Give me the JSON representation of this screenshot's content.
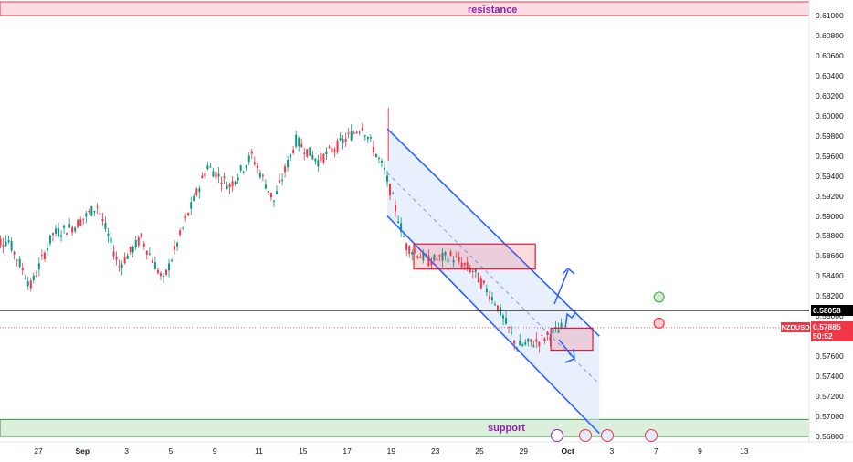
{
  "chart_data": {
    "type": "candlestick",
    "symbol": "NZDUSD",
    "last_price": "0.57885",
    "countdown": "50:52",
    "key_level": "0.58058",
    "zones": {
      "resistance": {
        "label": "resistance",
        "from": 0.61,
        "to": 0.6115
      },
      "support": {
        "label": "support",
        "from": 0.568,
        "to": 0.5697
      }
    },
    "ylim": [
      0.5674,
      0.6117
    ],
    "y_ticks": [
      "0.61000",
      "0.60800",
      "0.60600",
      "0.60400",
      "0.60200",
      "0.60000",
      "0.59800",
      "0.59600",
      "0.59400",
      "0.59200",
      "0.59000",
      "0.58800",
      "0.58600",
      "0.58400",
      "0.58200",
      "0.58000",
      "0.57800",
      "0.57600",
      "0.57400",
      "0.57200",
      "0.57000",
      "0.56800"
    ],
    "x_ticks": [
      "27",
      "Sep",
      "3",
      "5",
      "9",
      "11",
      "15",
      "17",
      "19",
      "23",
      "25",
      "29",
      "Oct",
      "3",
      "7",
      "9",
      "13"
    ],
    "x_tick_bold": [
      "Sep",
      "Oct"
    ],
    "session_count": 26,
    "session_closes": [
      0.5875,
      0.583,
      0.5882,
      0.589,
      0.591,
      0.585,
      0.5878,
      0.5835,
      0.5895,
      0.595,
      0.593,
      0.596,
      0.5915,
      0.5975,
      0.5955,
      0.5972,
      0.599,
      0.5945,
      0.587,
      0.5855,
      0.586,
      0.5845,
      0.5815,
      0.577,
      0.5775,
      0.5788
    ],
    "channel": {
      "upper": [
        [
          18,
          0.5987
        ],
        [
          27.6,
          0.578
        ]
      ],
      "lower": [
        [
          18,
          0.59
        ],
        [
          27.6,
          0.5683
        ]
      ],
      "mid_dashed": [
        [
          18,
          0.5943
        ],
        [
          27.6,
          0.5732
        ]
      ]
    },
    "consolidation_boxes": [
      {
        "x0": 19.2,
        "x1": 24.7,
        "top": 0.5872,
        "bottom": 0.5847
      },
      {
        "x0": 25.4,
        "x1": 27.3,
        "top": 0.5788,
        "bottom": 0.5766
      }
    ],
    "markers": [
      {
        "kind": "target-up",
        "color": "#4caf50",
        "x": 30.3,
        "y": 0.5819
      },
      {
        "kind": "target-down",
        "color": "#f23645",
        "x": 30.3,
        "y": 0.5793
      }
    ],
    "colors": {
      "up": "#089981",
      "down": "#f23645",
      "channel": "#2962ff",
      "channel_fill": "#d6e4fb",
      "resistance_fill": "#fbdde1",
      "resistance_border": "#e53950",
      "support_fill": "#dcefdc",
      "support_border": "#388e3c",
      "zone_text": "#8e24aa"
    }
  }
}
